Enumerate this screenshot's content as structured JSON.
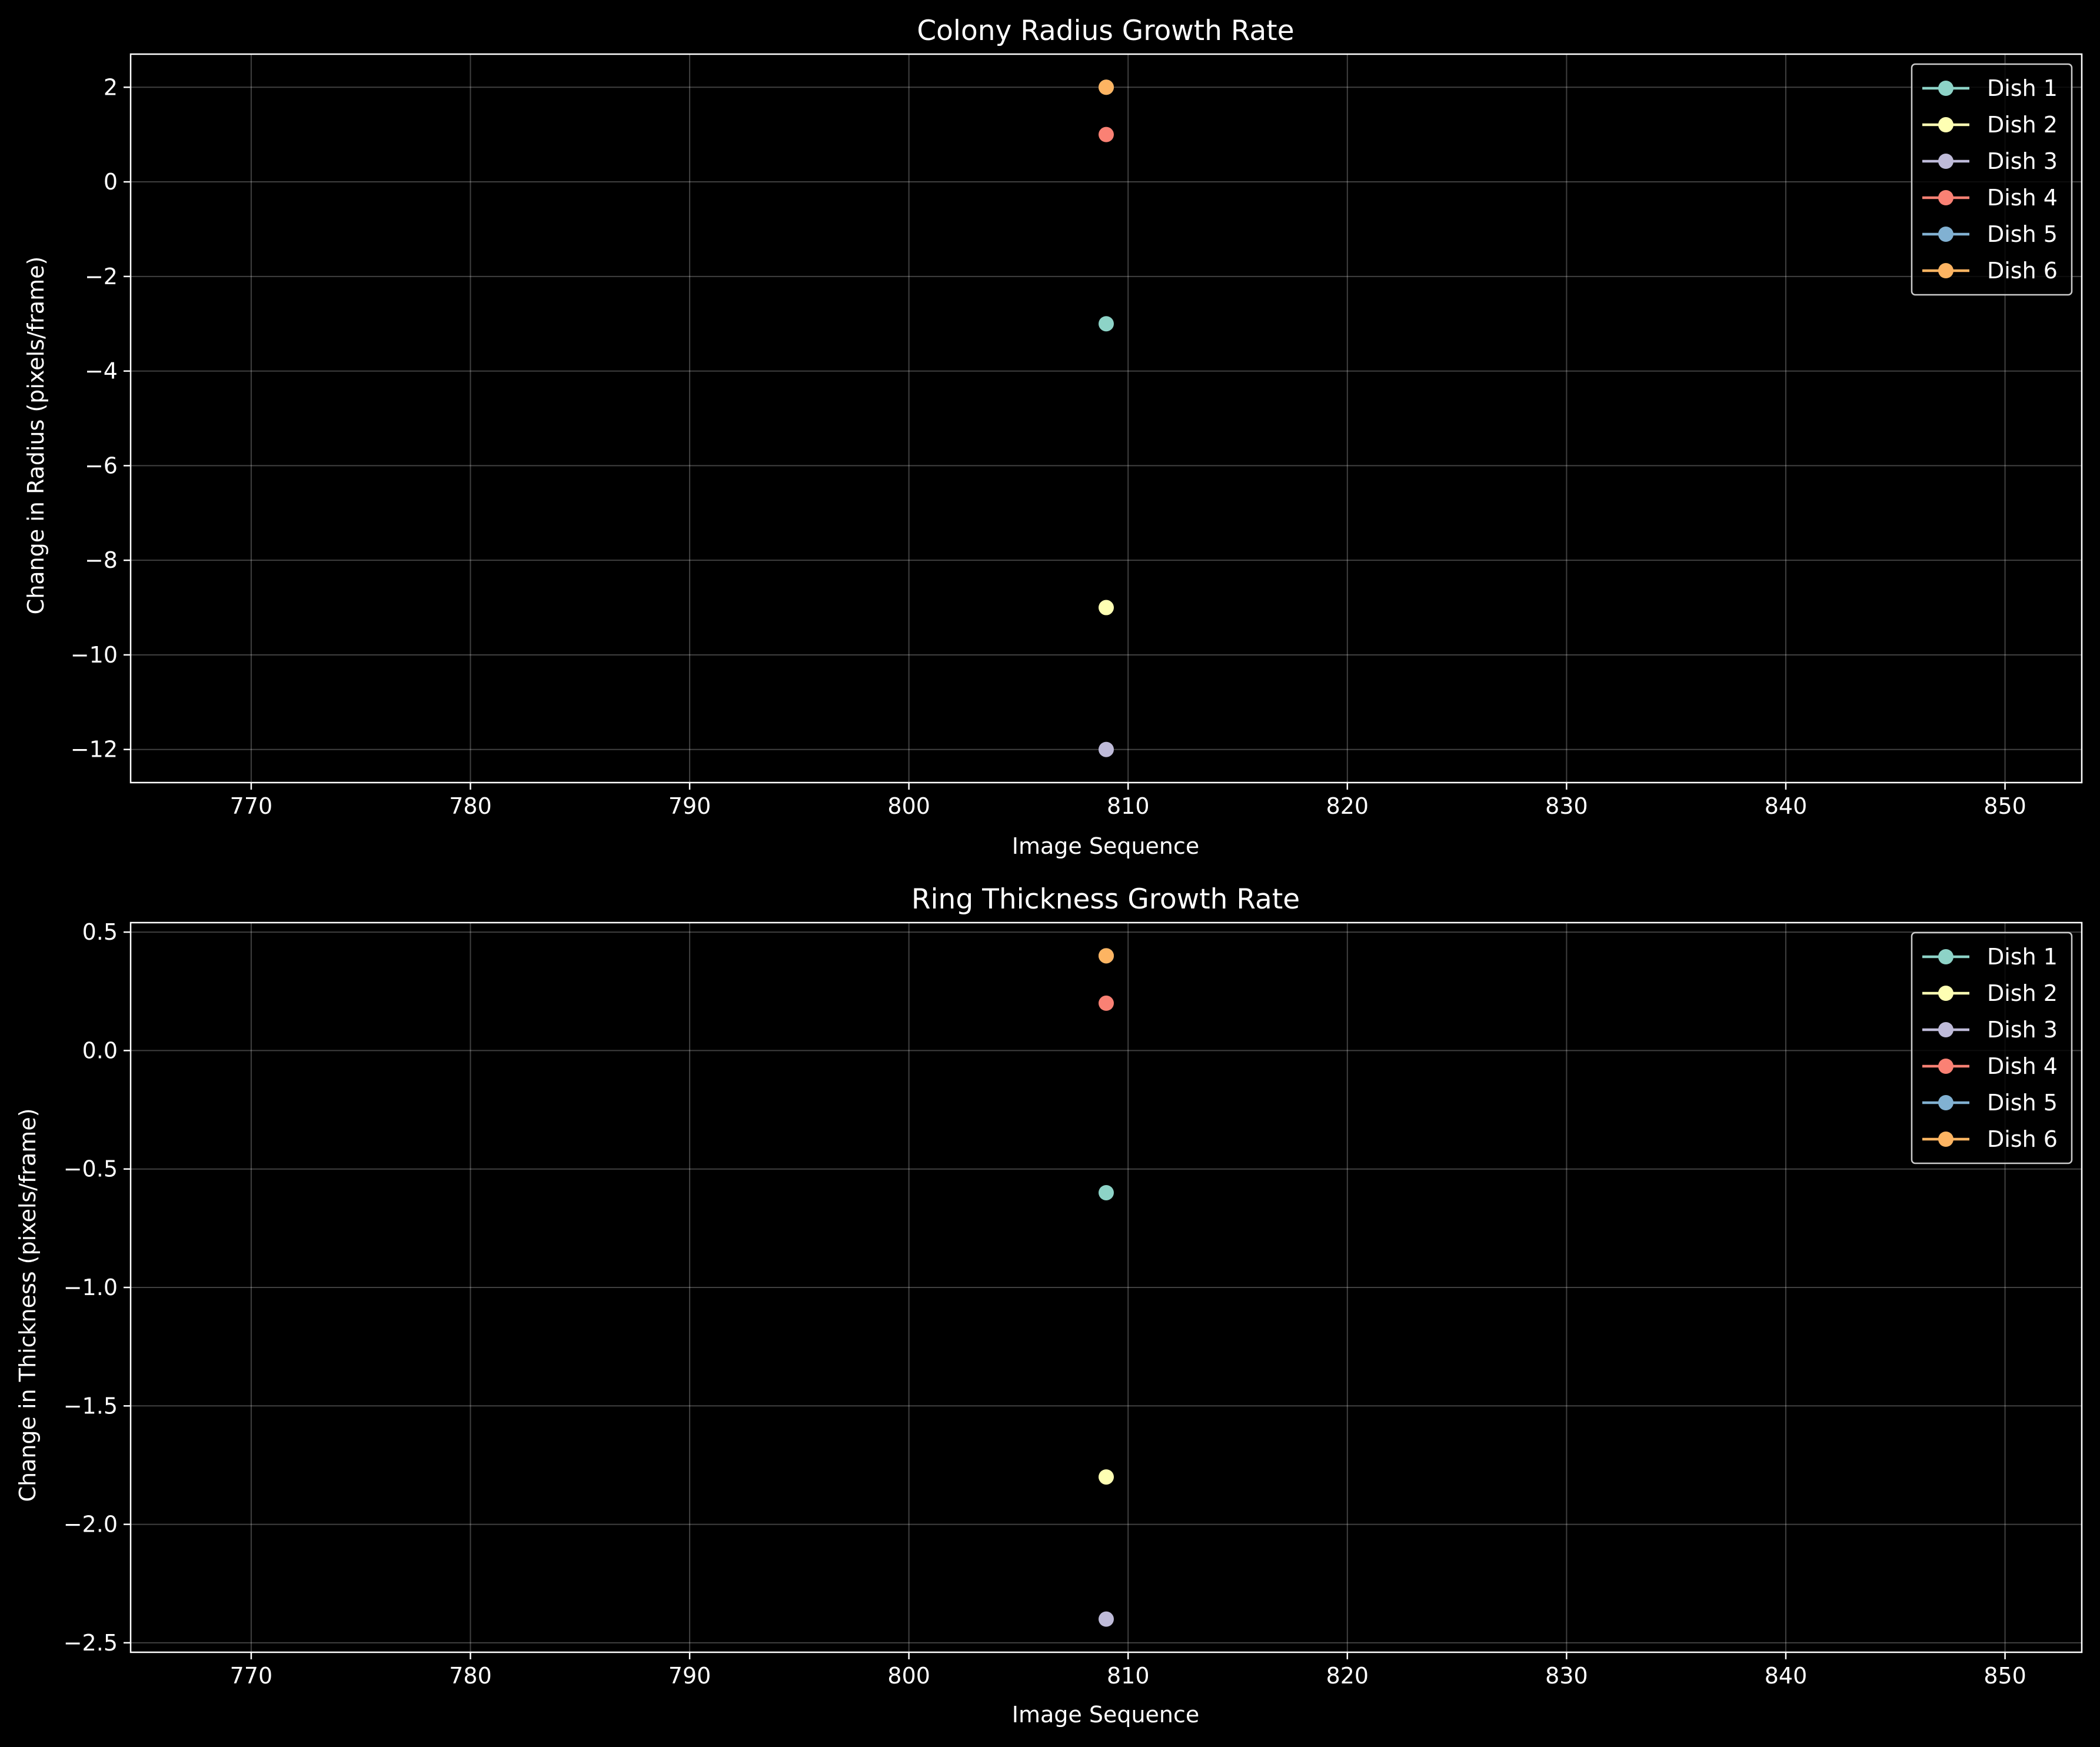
{
  "figure": {
    "background": "#000000",
    "grid_color": "#ffffff",
    "axis_color": "#ffffff"
  },
  "series_colors": [
    "#8dd3c7",
    "#feffb3",
    "#bfbbd9",
    "#fa8174",
    "#81b1d2",
    "#fdb462"
  ],
  "chart_data": [
    {
      "type": "line",
      "title": "Colony Radius Growth Rate",
      "xlabel": "Image Sequence",
      "ylabel": "Change in Radius (pixels/frame)",
      "xlim": [
        764.5,
        853.5
      ],
      "ylim": [
        -12.7,
        2.7
      ],
      "xticks": [
        770,
        780,
        790,
        800,
        810,
        820,
        830,
        840,
        850
      ],
      "yticks": [
        2,
        0,
        -2,
        -4,
        -6,
        -8,
        -10,
        -12
      ],
      "ytick_labels": [
        "2",
        "0",
        "−2",
        "−4",
        "−6",
        "−8",
        "−10",
        "−12"
      ],
      "grid": true,
      "legend": "upper right",
      "series": [
        {
          "name": "Dish 1",
          "x": [
            809
          ],
          "y": [
            -3
          ]
        },
        {
          "name": "Dish 2",
          "x": [
            809
          ],
          "y": [
            -9
          ]
        },
        {
          "name": "Dish 3",
          "x": [
            809
          ],
          "y": [
            -12
          ]
        },
        {
          "name": "Dish 4",
          "x": [
            809
          ],
          "y": [
            1
          ]
        },
        {
          "name": "Dish 5",
          "x": [
            809
          ],
          "y": [
            2
          ]
        },
        {
          "name": "Dish 6",
          "x": [
            809
          ],
          "y": [
            2
          ]
        }
      ]
    },
    {
      "type": "line",
      "title": "Ring Thickness Growth Rate",
      "xlabel": "Image Sequence",
      "ylabel": "Change in Thickness (pixels/frame)",
      "xlim": [
        764.5,
        853.5
      ],
      "ylim": [
        -2.54,
        0.54
      ],
      "xticks": [
        770,
        780,
        790,
        800,
        810,
        820,
        830,
        840,
        850
      ],
      "yticks": [
        0.5,
        0.0,
        -0.5,
        -1.0,
        -1.5,
        -2.0,
        -2.5
      ],
      "ytick_labels": [
        "0.5",
        "0.0",
        "−0.5",
        "−1.0",
        "−1.5",
        "−2.0",
        "−2.5"
      ],
      "grid": true,
      "legend": "upper right",
      "series": [
        {
          "name": "Dish 1",
          "x": [
            809
          ],
          "y": [
            -0.6
          ]
        },
        {
          "name": "Dish 2",
          "x": [
            809
          ],
          "y": [
            -1.8
          ]
        },
        {
          "name": "Dish 3",
          "x": [
            809
          ],
          "y": [
            -2.4
          ]
        },
        {
          "name": "Dish 4",
          "x": [
            809
          ],
          "y": [
            0.2
          ]
        },
        {
          "name": "Dish 5",
          "x": [
            809
          ],
          "y": [
            0.4
          ]
        },
        {
          "name": "Dish 6",
          "x": [
            809
          ],
          "y": [
            0.4
          ]
        }
      ]
    }
  ]
}
